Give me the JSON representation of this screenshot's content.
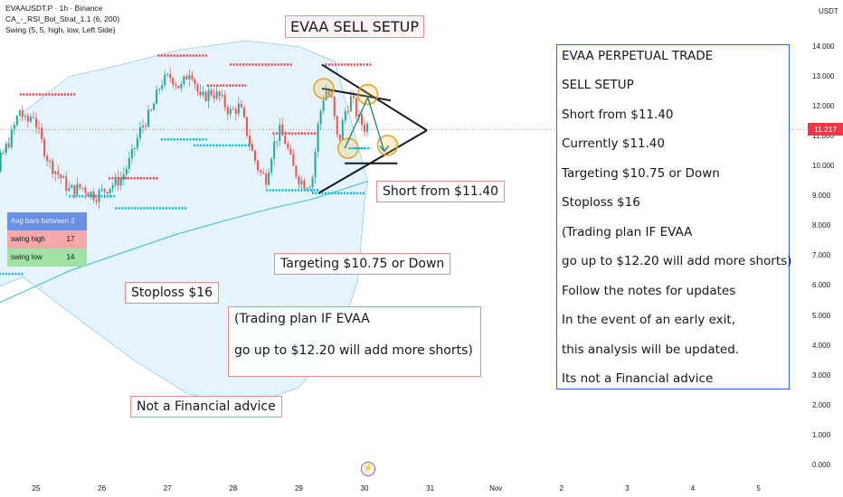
{
  "header": {
    "symbol_line": "EVAAUSDT.P · 1h · Binance",
    "indicator1": "CA_-_RSI_Bol_Strat_1.1 (6, 200)",
    "indicator2": "Swing (5, 5, high, low, Left Side)"
  },
  "currency": "USDT",
  "last_price": "11.217",
  "colors": {
    "up": "#26a69a",
    "down": "#ef5350",
    "band": "#cfe9f7",
    "swing_high": "#f23645",
    "swing_low": "#00bcd4",
    "notes_border": "#2962ff",
    "annotation_border": "#f08a8a"
  },
  "annotations": {
    "title": "EVAA SELL SETUP",
    "short": "Short from $11.40",
    "target": "Targeting $10.75 or Down",
    "stop": "Stoploss $16",
    "disclaimer": "Not a Financial advice",
    "plan_line1": "(Trading plan IF EVAA",
    "plan_line2": "go up to $12.20 will add more shorts)"
  },
  "notes": [
    "EVAA PERPETUAL TRADE",
    "SELL SETUP",
    "Short from $11.40",
    "Currently $11.40",
    "Targeting $10.75 or Down",
    "Stoploss $16",
    "(Trading plan IF EVAA",
    "go up to $12.20 will add more shorts)",
    "Follow the notes for updates",
    "In the event of an early exit,",
    "this analysis will be updated.",
    "Its not a Financial advice"
  ],
  "info_table": {
    "header": "Avg bars between 2",
    "rows": [
      {
        "label": "swing high",
        "value": "17"
      },
      {
        "label": "swing low",
        "value": "14"
      }
    ]
  },
  "chart_data": {
    "type": "line",
    "series_style": "candlestick",
    "x_ticks": [
      "25",
      "26",
      "27",
      "28",
      "29",
      "30",
      "31",
      "Nov",
      "2",
      "3",
      "4",
      "5"
    ],
    "y_ticks": [
      "14.000",
      "13.000",
      "12.000",
      "11.000",
      "10.000",
      "9.000",
      "8.000",
      "7.000",
      "6.000",
      "5.000",
      "4.000",
      "3.000",
      "2.000",
      "1.000",
      "0.000"
    ],
    "ylim": [
      0,
      14
    ],
    "close_path": [
      {
        "x": 24.0,
        "y": 6.6
      },
      {
        "x": 24.15,
        "y": 7.5
      },
      {
        "x": 24.3,
        "y": 8.2
      },
      {
        "x": 24.45,
        "y": 10.2
      },
      {
        "x": 24.6,
        "y": 10.9
      },
      {
        "x": 24.75,
        "y": 11.9
      },
      {
        "x": 24.85,
        "y": 11.4
      },
      {
        "x": 24.95,
        "y": 11.8
      },
      {
        "x": 25.05,
        "y": 11.0
      },
      {
        "x": 25.2,
        "y": 10.1
      },
      {
        "x": 25.35,
        "y": 9.7
      },
      {
        "x": 25.5,
        "y": 9.2
      },
      {
        "x": 25.7,
        "y": 9.3
      },
      {
        "x": 25.9,
        "y": 9.0
      },
      {
        "x": 26.1,
        "y": 9.3
      },
      {
        "x": 26.3,
        "y": 9.6
      },
      {
        "x": 26.45,
        "y": 10.3
      },
      {
        "x": 26.6,
        "y": 11.3
      },
      {
        "x": 26.75,
        "y": 11.8
      },
      {
        "x": 26.9,
        "y": 12.8
      },
      {
        "x": 27.05,
        "y": 13.0
      },
      {
        "x": 27.2,
        "y": 12.6
      },
      {
        "x": 27.35,
        "y": 13.3
      },
      {
        "x": 27.5,
        "y": 12.2
      },
      {
        "x": 27.65,
        "y": 12.5
      },
      {
        "x": 27.8,
        "y": 12.3
      },
      {
        "x": 27.95,
        "y": 11.8
      },
      {
        "x": 28.1,
        "y": 12.0
      },
      {
        "x": 28.2,
        "y": 11.2
      },
      {
        "x": 28.3,
        "y": 10.4
      },
      {
        "x": 28.4,
        "y": 9.8
      },
      {
        "x": 28.5,
        "y": 9.6
      },
      {
        "x": 28.6,
        "y": 10.6
      },
      {
        "x": 28.7,
        "y": 11.2
      },
      {
        "x": 28.8,
        "y": 10.8
      },
      {
        "x": 28.9,
        "y": 10.0
      },
      {
        "x": 29.0,
        "y": 9.6
      },
      {
        "x": 29.1,
        "y": 9.4
      },
      {
        "x": 29.2,
        "y": 9.5
      },
      {
        "x": 29.3,
        "y": 11.5
      },
      {
        "x": 29.4,
        "y": 12.6
      },
      {
        "x": 29.5,
        "y": 12.2
      },
      {
        "x": 29.6,
        "y": 10.7
      },
      {
        "x": 29.7,
        "y": 11.8
      },
      {
        "x": 29.8,
        "y": 12.3
      },
      {
        "x": 29.9,
        "y": 11.6
      },
      {
        "x": 30.0,
        "y": 11.3
      },
      {
        "x": 30.05,
        "y": 11.4
      }
    ],
    "swing_high_levels": [
      {
        "x1": 24.0,
        "x2": 24.4,
        "y": 8.2
      },
      {
        "x1": 24.75,
        "x2": 25.6,
        "y": 12.4
      },
      {
        "x1": 26.1,
        "x2": 26.85,
        "y": 9.6
      },
      {
        "x1": 26.85,
        "x2": 27.6,
        "y": 13.7
      },
      {
        "x1": 27.6,
        "x2": 28.2,
        "y": 12.7
      },
      {
        "x1": 27.95,
        "x2": 28.9,
        "y": 13.4
      },
      {
        "x1": 28.6,
        "x2": 29.3,
        "y": 11.1
      },
      {
        "x1": 29.4,
        "x2": 30.1,
        "y": 13.4
      }
    ],
    "swing_low_levels": [
      {
        "x1": 24.0,
        "x2": 24.8,
        "y": 6.4
      },
      {
        "x1": 25.5,
        "x2": 26.2,
        "y": 9.0
      },
      {
        "x1": 26.2,
        "x2": 27.3,
        "y": 8.6
      },
      {
        "x1": 26.9,
        "x2": 27.6,
        "y": 10.9
      },
      {
        "x1": 27.4,
        "x2": 28.3,
        "y": 10.7
      },
      {
        "x1": 28.5,
        "x2": 29.3,
        "y": 9.2
      },
      {
        "x1": 29.2,
        "x2": 30.0,
        "y": 9.1
      },
      {
        "x1": 29.85,
        "x2": 30.1,
        "y": 10.6
      }
    ],
    "band_upper": [
      {
        "x": 24.0,
        "y": 8.3
      },
      {
        "x": 24.8,
        "y": 11.8
      },
      {
        "x": 25.5,
        "y": 13.0
      },
      {
        "x": 26.3,
        "y": 13.4
      },
      {
        "x": 27.2,
        "y": 13.9
      },
      {
        "x": 28.2,
        "y": 14.2
      },
      {
        "x": 29.0,
        "y": 14.0
      },
      {
        "x": 29.55,
        "y": 13.5
      }
    ],
    "band_lower": [
      {
        "x": 24.0,
        "y": 5.6
      },
      {
        "x": 24.8,
        "y": 6.3
      },
      {
        "x": 25.7,
        "y": 4.8
      },
      {
        "x": 26.5,
        "y": 3.5
      },
      {
        "x": 27.3,
        "y": 2.4
      },
      {
        "x": 28.2,
        "y": 2.0
      },
      {
        "x": 29.0,
        "y": 2.6
      },
      {
        "x": 29.6,
        "y": 4.2
      },
      {
        "x": 29.9,
        "y": 6.2
      },
      {
        "x": 30.0,
        "y": 8.8
      },
      {
        "x": 30.05,
        "y": 9.5
      }
    ],
    "ma_line": [
      {
        "x": 24.0,
        "y": 5.0
      },
      {
        "x": 24.8,
        "y": 5.8
      },
      {
        "x": 25.5,
        "y": 6.5
      },
      {
        "x": 26.3,
        "y": 7.1
      },
      {
        "x": 27.1,
        "y": 7.7
      },
      {
        "x": 27.9,
        "y": 8.2
      },
      {
        "x": 28.6,
        "y": 8.6
      },
      {
        "x": 29.2,
        "y": 8.9
      },
      {
        "x": 30.05,
        "y": 9.5
      }
    ],
    "triangle": {
      "upper": [
        {
          "x": 29.35,
          "y": 13.4
        },
        {
          "x": 30.95,
          "y": 11.2
        }
      ],
      "lower": [
        {
          "x": 29.3,
          "y": 9.1
        },
        {
          "x": 30.95,
          "y": 11.2
        }
      ]
    },
    "inner_line": [
      {
        "x": 29.35,
        "y": 12.6
      },
      {
        "x": 30.4,
        "y": 12.2
      }
    ],
    "circles": [
      {
        "x": 29.38,
        "y": 12.6
      },
      {
        "x": 30.05,
        "y": 12.4
      },
      {
        "x": 29.75,
        "y": 10.6
      },
      {
        "x": 30.35,
        "y": 10.7
      }
    ],
    "projection": [
      {
        "x": 29.7,
        "y": 10.6
      },
      {
        "x": 30.05,
        "y": 12.3
      },
      {
        "x": 30.3,
        "y": 10.5
      }
    ],
    "last_price_value": 11.217
  }
}
